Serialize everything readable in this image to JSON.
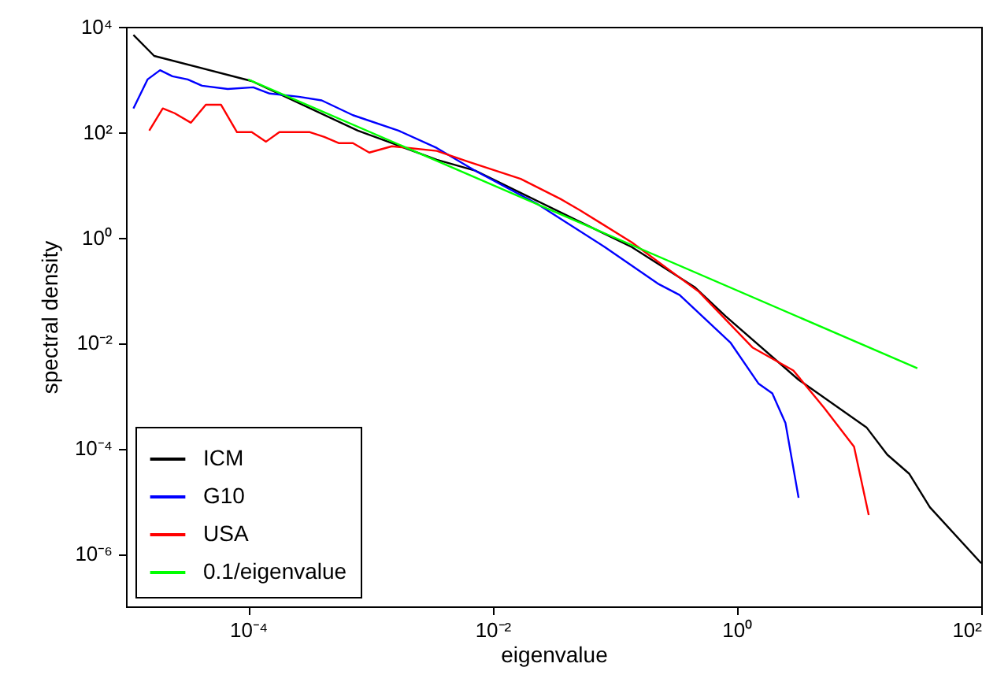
{
  "chart_data": {
    "type": "line",
    "xlabel": "eigenvalue",
    "ylabel": "spectral density",
    "log": "xy",
    "grid": false,
    "legend": "bottom left",
    "line_style": "solid",
    "marker": "none",
    "xlim": [
      1e-05,
      100
    ],
    "ylim": [
      1e-07,
      10000
    ],
    "xticks": [
      {
        "value": 0.0001,
        "label": "10⁻⁴"
      },
      {
        "value": 0.01,
        "label": "10⁻²"
      },
      {
        "value": 1,
        "label": "10⁰"
      },
      {
        "value": 100,
        "label": "10²"
      }
    ],
    "yticks": [
      {
        "value": 1e-06,
        "label": "10⁻⁶"
      },
      {
        "value": 0.0001,
        "label": "10⁻⁴"
      },
      {
        "value": 0.01,
        "label": "10⁻²"
      },
      {
        "value": 1,
        "label": "10⁰"
      },
      {
        "value": 100,
        "label": "10²"
      },
      {
        "value": 10000,
        "label": "10⁴"
      }
    ],
    "series": [
      {
        "name": "ICM",
        "color": "#000000",
        "x": [
          1.15e-05,
          1.7e-05,
          0.000107,
          0.00079,
          0.0035,
          0.0072,
          0.138,
          0.45,
          0.81,
          3.2,
          11.5,
          17,
          25.7,
          38,
          100
        ],
        "values": [
          7000,
          2800,
          930,
          107,
          30,
          18.6,
          0.66,
          0.115,
          0.032,
          0.002,
          0.00025,
          7.6e-05,
          3.3e-05,
          7.6e-06,
          6.6e-07
        ]
      },
      {
        "name": "G10",
        "color": "#0000ff",
        "x": [
          1.15e-05,
          1.5e-05,
          1.9e-05,
          2.4e-05,
          3.2e-05,
          4.2e-05,
          6.8e-05,
          0.00011,
          0.00015,
          0.00026,
          0.0004,
          0.00072,
          0.0017,
          0.0035,
          0.0072,
          0.023,
          0.083,
          0.23,
          0.34,
          0.89,
          1.5,
          1.95,
          2.5,
          3.2
        ],
        "values": [
          282,
          1000,
          1500,
          1150,
          1000,
          760,
          660,
          710,
          540,
          470,
          400,
          210,
          107,
          50,
          18.6,
          4.4,
          0.66,
          0.13,
          0.081,
          0.01,
          0.0017,
          0.0011,
          0.0003,
          1.15e-05
        ]
      },
      {
        "name": "USA",
        "color": "#ff0000",
        "x": [
          1.55e-05,
          2e-05,
          2.5e-05,
          3.4e-05,
          4.5e-05,
          6e-05,
          8.1e-05,
          0.000107,
          0.00014,
          0.00018,
          0.00032,
          0.00042,
          0.00055,
          0.00072,
          0.00098,
          0.0015,
          0.0035,
          0.0062,
          0.017,
          0.036,
          0.052,
          0.138,
          0.49,
          1.35,
          2.9,
          5.2,
          9.1,
          12
        ],
        "values": [
          107,
          282,
          229,
          151,
          331,
          331,
          100,
          100,
          66,
          100,
          100,
          81,
          62,
          62,
          41,
          54,
          44,
          28,
          13,
          5.4,
          3.3,
          0.81,
          0.093,
          0.0081,
          0.003,
          0.00058,
          0.000107,
          5.4e-06
        ]
      },
      {
        "name": "0.1/eigenvalue",
        "color": "#00ff00",
        "x": [
          0.0001,
          30
        ],
        "values": [
          1000,
          0.0033
        ]
      }
    ]
  }
}
